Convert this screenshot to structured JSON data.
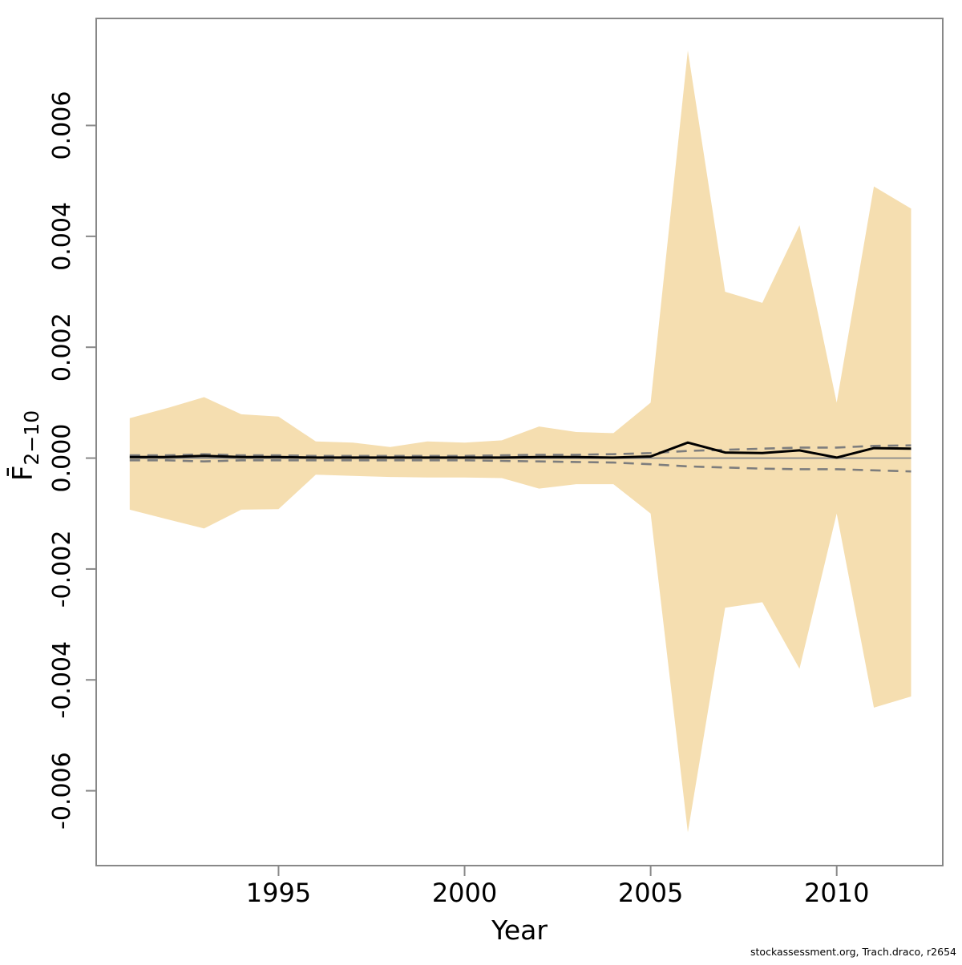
{
  "chart_data": {
    "type": "area",
    "title": "",
    "xlabel": "Year",
    "ylabel_base": "F̄",
    "ylabel_sub": "2−10",
    "x": [
      1991,
      1992,
      1993,
      1994,
      1995,
      1996,
      1997,
      1998,
      1999,
      2000,
      2001,
      2002,
      2003,
      2004,
      2005,
      2006,
      2007,
      2008,
      2009,
      2010,
      2011,
      2012
    ],
    "series": [
      {
        "name": "fbar_estimate",
        "style": "solid-black-line",
        "values": [
          2e-05,
          2e-05,
          4e-05,
          2e-05,
          2e-05,
          1e-05,
          1e-05,
          1e-05,
          1e-05,
          1e-05,
          1e-05,
          2e-05,
          2e-05,
          1e-05,
          3e-05,
          0.00028,
          0.0001,
          9e-05,
          0.00014,
          1e-05,
          0.00018,
          0.00017
        ]
      },
      {
        "name": "ci_upper_dashed",
        "style": "dashed-gray-line",
        "values": [
          5e-05,
          5e-05,
          7e-05,
          5e-05,
          5e-05,
          4e-05,
          4e-05,
          4e-05,
          4e-05,
          4e-05,
          5e-05,
          6e-05,
          6e-05,
          7e-05,
          9e-05,
          0.00013,
          0.00015,
          0.00017,
          0.00019,
          0.00019,
          0.00022,
          0.00023
        ]
      },
      {
        "name": "ci_lower_dashed",
        "style": "dashed-gray-line",
        "values": [
          -4e-05,
          -4e-05,
          -6e-05,
          -4e-05,
          -4e-05,
          -4e-05,
          -4e-05,
          -4e-05,
          -4e-05,
          -4e-05,
          -5e-05,
          -6e-05,
          -7e-05,
          -8e-05,
          -0.00011,
          -0.00015,
          -0.00017,
          -0.00019,
          -0.0002,
          -0.0002,
          -0.00022,
          -0.00024
        ]
      },
      {
        "name": "confidence_band_upper",
        "style": "area-top",
        "values": [
          0.00072,
          0.0009,
          0.0011,
          0.00079,
          0.00075,
          0.0003,
          0.00028,
          0.0002,
          0.0003,
          0.00028,
          0.00032,
          0.00057,
          0.00047,
          0.00045,
          0.001,
          0.00735,
          0.003,
          0.0028,
          0.0042,
          0.001,
          0.0049,
          0.0045
        ]
      },
      {
        "name": "confidence_band_lower",
        "style": "area-bottom",
        "values": [
          -0.00093,
          -0.0011,
          -0.00127,
          -0.00093,
          -0.00092,
          -0.0003,
          -0.00032,
          -0.00034,
          -0.00035,
          -0.00035,
          -0.00036,
          -0.00055,
          -0.00047,
          -0.00047,
          -0.001,
          -0.00675,
          -0.0027,
          -0.0026,
          -0.0038,
          -0.001,
          -0.0045,
          -0.0043
        ]
      }
    ],
    "zero_line": 0,
    "x_ticks": [
      1995,
      2000,
      2005,
      2010
    ],
    "x_tick_labels": [
      "1995",
      "2000",
      "2005",
      "2010"
    ],
    "y_ticks": [
      -0.006,
      -0.004,
      -0.002,
      0,
      0.002,
      0.004,
      0.006
    ],
    "y_tick_labels": [
      "-0.006",
      "-0.004",
      "-0.002",
      "0.000",
      "0.002",
      "0.004",
      "0.006"
    ],
    "xlim": [
      1990.1,
      2012.85
    ],
    "ylim": [
      -0.00735,
      0.00793
    ],
    "grid": false,
    "legend": null,
    "colors": {
      "band": "#f5deb0",
      "estimate_line": "#000000",
      "ci_line": "#7d7d7d",
      "zero_line": "#8c8c8c",
      "box": "#888888",
      "text": "#000000"
    }
  },
  "footer": {
    "text": "stockassessment.org, Trach.draco, r2654"
  }
}
